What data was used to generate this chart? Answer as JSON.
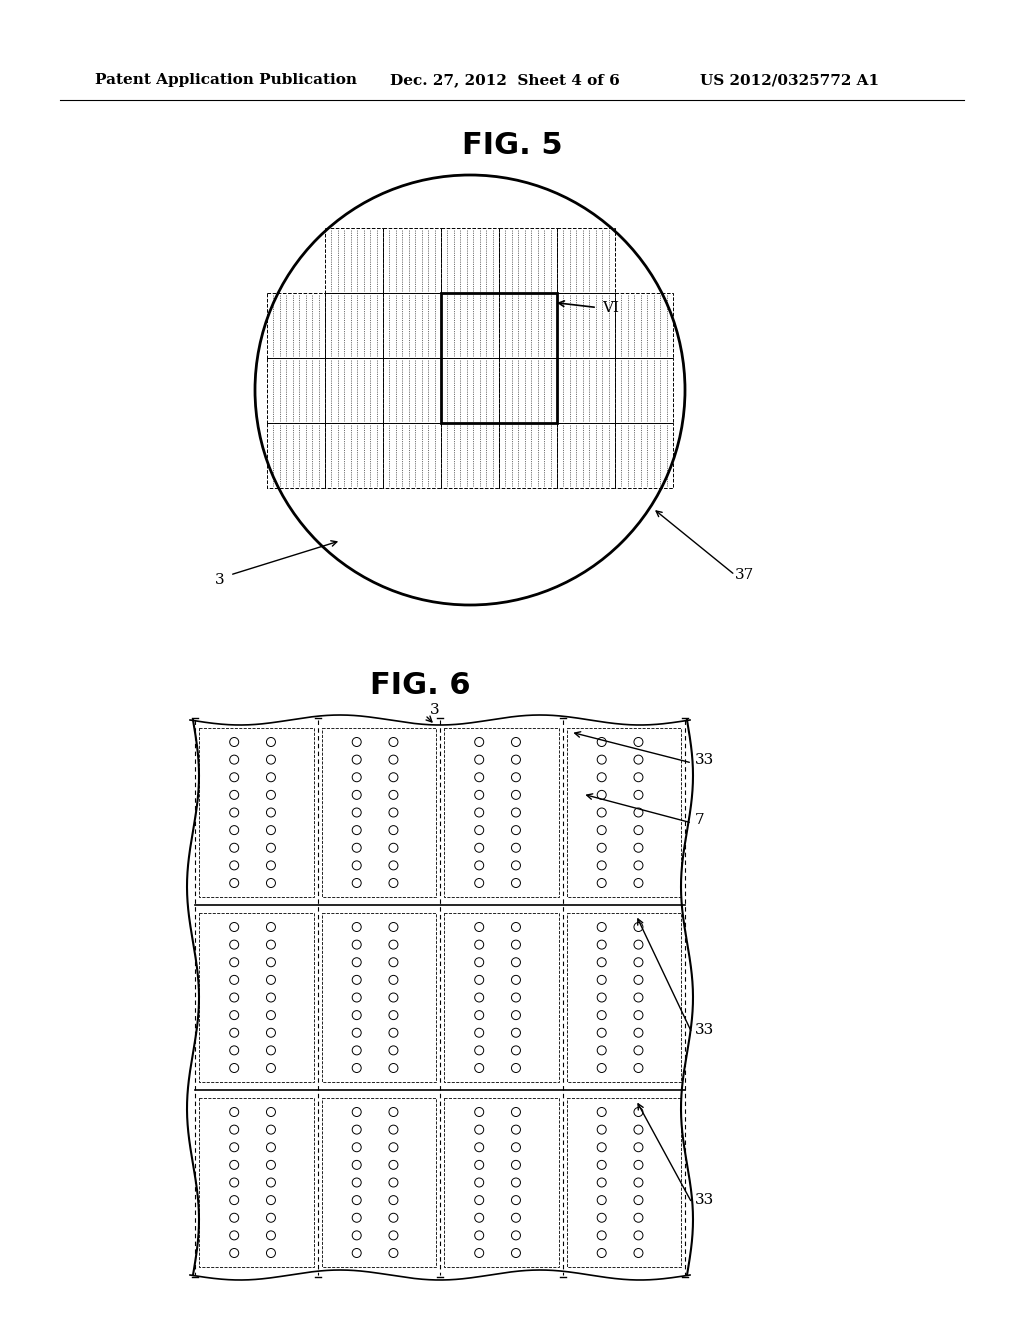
{
  "header_left": "Patent Application Publication",
  "header_mid": "Dec. 27, 2012  Sheet 4 of 6",
  "header_right": "US 2012/0325772 A1",
  "fig5_title": "FIG. 5",
  "fig6_title": "FIG. 6",
  "fig5_label_3": "3",
  "fig5_label_37": "37",
  "fig5_label_VI": "VI",
  "fig6_label_3": "3",
  "fig6_label_33a": "33",
  "fig6_label_33b": "33",
  "fig6_label_33c": "33",
  "fig6_label_7": "7",
  "bg_color": "#ffffff",
  "line_color": "#000000"
}
